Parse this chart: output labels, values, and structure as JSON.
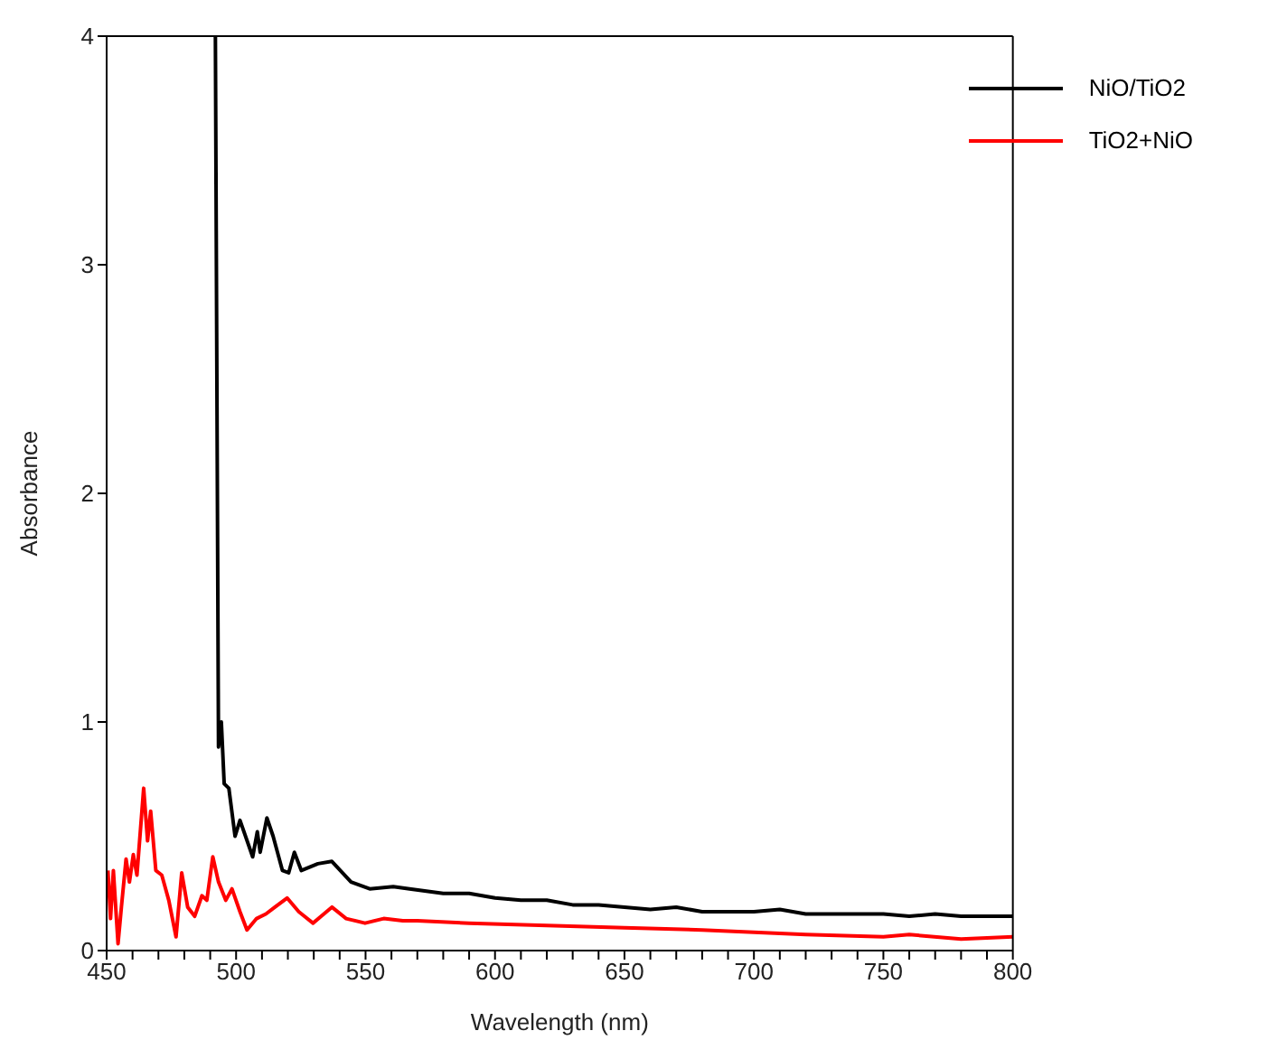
{
  "chart_data": {
    "type": "line",
    "xlabel": "Wavelength (nm)",
    "ylabel": "Absorbance",
    "xlim": [
      450,
      800
    ],
    "ylim": [
      0,
      4
    ],
    "xticks": [
      450,
      {
        "value": 460,
        "label": null
      },
      {
        "value": 470,
        "label": null
      },
      {
        "value": 480,
        "label": null
      },
      {
        "value": 490,
        "label": null
      },
      500,
      {
        "value": 510,
        "label": null
      },
      {
        "value": 520,
        "label": null
      },
      {
        "value": 530,
        "label": null
      },
      {
        "value": 540,
        "label": null
      },
      550,
      {
        "value": 560,
        "label": null
      },
      {
        "value": 570,
        "label": null
      },
      {
        "value": 580,
        "label": null
      },
      {
        "value": 590,
        "label": null
      },
      600,
      {
        "value": 610,
        "label": null
      },
      {
        "value": 620,
        "label": null
      },
      {
        "value": 630,
        "label": null
      },
      {
        "value": 640,
        "label": null
      },
      650,
      {
        "value": 660,
        "label": null
      },
      {
        "value": 670,
        "label": null
      },
      {
        "value": 680,
        "label": null
      },
      {
        "value": 690,
        "label": null
      },
      700,
      {
        "value": 710,
        "label": null
      },
      {
        "value": 720,
        "label": null
      },
      {
        "value": 730,
        "label": null
      },
      {
        "value": 740,
        "label": null
      },
      750,
      {
        "value": 760,
        "label": null
      },
      {
        "value": 770,
        "label": null
      },
      {
        "value": 780,
        "label": null
      },
      {
        "value": 790,
        "label": null
      },
      800
    ],
    "yticks": [
      0,
      1,
      2,
      3,
      4
    ],
    "legend": "top right",
    "marker": "none",
    "line_style": "solid",
    "series": [
      {
        "name": "NiO/TiO2",
        "color": "#000000",
        "x": [
          492,
          493.2,
          494.3,
          495.4,
          497.2,
          499.6,
          501.5,
          506.4,
          508.2,
          509.3,
          511.9,
          514.3,
          517.9,
          520.3,
          522.5,
          525.2,
          531.6,
          537,
          544.4,
          551.6,
          560.7,
          567,
          580,
          590,
          600,
          610,
          620,
          630,
          640,
          650,
          660,
          670,
          680,
          690,
          700,
          710,
          720,
          730,
          740,
          750,
          760,
          770,
          780,
          790,
          800
        ],
        "values": [
          4,
          0.89,
          1.0,
          0.73,
          0.71,
          0.5,
          0.57,
          0.41,
          0.52,
          0.43,
          0.58,
          0.5,
          0.35,
          0.34,
          0.43,
          0.35,
          0.38,
          0.39,
          0.3,
          0.27,
          0.28,
          0.27,
          0.25,
          0.25,
          0.23,
          0.22,
          0.22,
          0.2,
          0.2,
          0.19,
          0.18,
          0.19,
          0.17,
          0.17,
          0.17,
          0.18,
          0.16,
          0.16,
          0.16,
          0.16,
          0.15,
          0.16,
          0.15,
          0.15,
          0.15
        ]
      },
      {
        "name": "TiO2+NiO",
        "color": "#ff0000",
        "x": [
          450.5,
          451.5,
          452.6,
          454.4,
          455.7,
          457.5,
          458.8,
          460.3,
          461.7,
          464.3,
          465.8,
          467,
          469,
          471.3,
          474,
          476.8,
          479,
          481.3,
          484,
          486.8,
          488.7,
          491,
          493.2,
          496,
          498.4,
          501.5,
          504.2,
          507.9,
          511.5,
          515,
          519.7,
          524.2,
          529.7,
          537,
          542.5,
          549.8,
          557,
          564.4,
          570,
          590,
          620,
          650,
          680,
          700,
          720,
          750,
          760,
          780,
          800
        ],
        "values": [
          0.35,
          0.14,
          0.35,
          0.03,
          0.19,
          0.4,
          0.3,
          0.42,
          0.33,
          0.71,
          0.48,
          0.61,
          0.35,
          0.33,
          0.22,
          0.06,
          0.34,
          0.19,
          0.15,
          0.24,
          0.22,
          0.41,
          0.3,
          0.22,
          0.27,
          0.17,
          0.09,
          0.14,
          0.16,
          0.19,
          0.23,
          0.17,
          0.12,
          0.19,
          0.14,
          0.12,
          0.14,
          0.13,
          0.13,
          0.12,
          0.11,
          0.1,
          0.09,
          0.08,
          0.07,
          0.06,
          0.07,
          0.05,
          0.06
        ]
      }
    ]
  }
}
